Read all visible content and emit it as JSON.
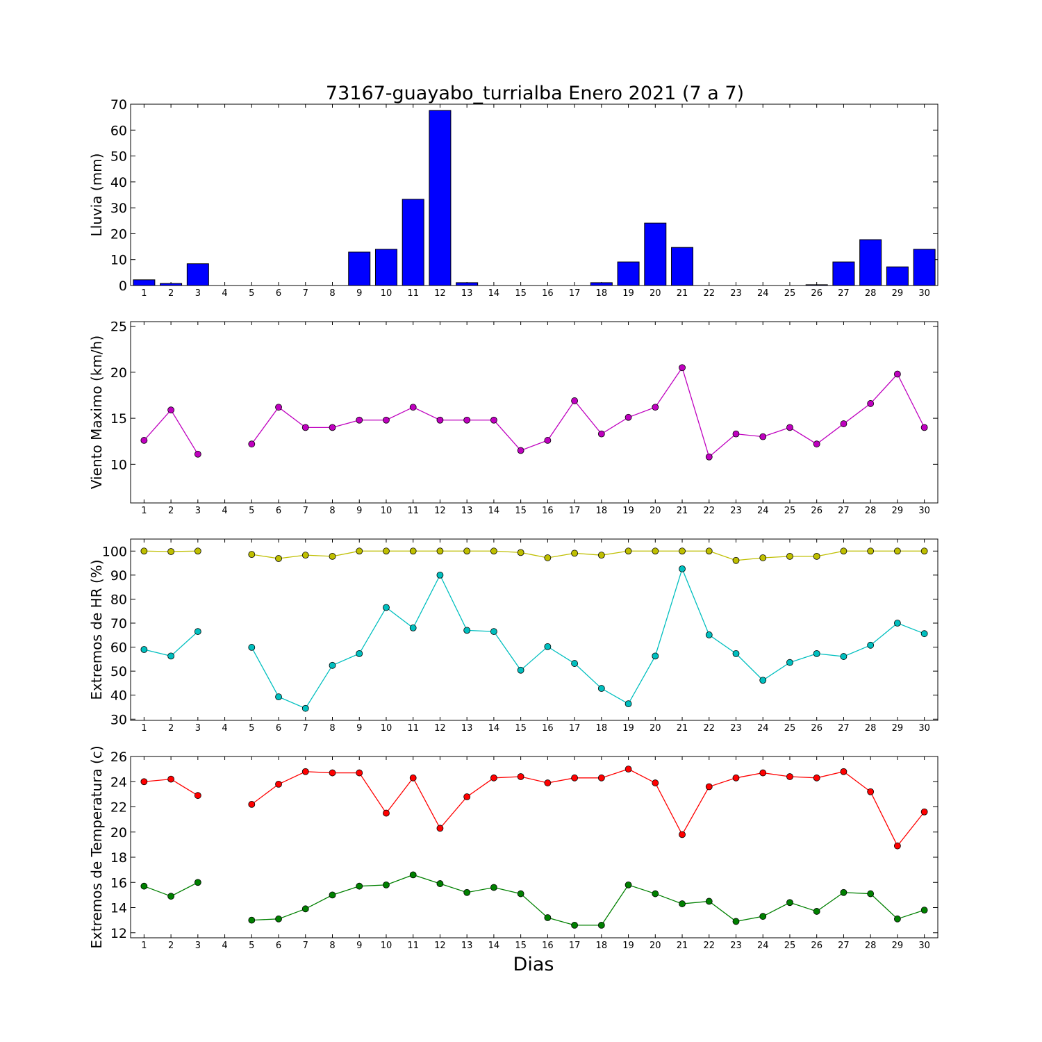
{
  "figure": {
    "title": "73167-guayabo_turrialba Enero 2021  (7 a 7)",
    "xlabel": "Dias"
  },
  "chart_data": [
    {
      "type": "bar",
      "ylabel": "Lluvia (mm)",
      "ylim": [
        0,
        70
      ],
      "yticks": [
        0,
        10,
        20,
        30,
        40,
        50,
        60,
        70
      ],
      "categories": [
        1,
        2,
        3,
        4,
        5,
        6,
        7,
        8,
        9,
        10,
        11,
        12,
        13,
        14,
        15,
        16,
        17,
        18,
        19,
        20,
        21,
        22,
        23,
        24,
        25,
        26,
        27,
        28,
        29,
        30
      ],
      "values": [
        2.2,
        0.8,
        8.4,
        0,
        0,
        0,
        0,
        0,
        12.9,
        14,
        33.3,
        67.6,
        1.1,
        0,
        0,
        0,
        0,
        1.1,
        9.1,
        24.1,
        14.7,
        0,
        0,
        0,
        0,
        0.3,
        9.1,
        17.7,
        7.2,
        14
      ],
      "color": "#0000ff"
    },
    {
      "type": "line",
      "ylabel": "Viento Maximo (km/h)",
      "ylim": [
        5.8,
        25.5
      ],
      "yticks": [
        10,
        15,
        20,
        25
      ],
      "x": [
        1,
        2,
        3,
        4,
        5,
        6,
        7,
        8,
        9,
        10,
        11,
        12,
        13,
        14,
        15,
        16,
        17,
        18,
        19,
        20,
        21,
        22,
        23,
        24,
        25,
        26,
        27,
        28,
        29,
        30
      ],
      "series": [
        {
          "values": [
            12.6,
            15.9,
            11.1,
            null,
            12.2,
            16.2,
            14,
            14,
            14.8,
            14.8,
            16.2,
            14.8,
            14.8,
            14.8,
            11.5,
            12.6,
            16.9,
            13.3,
            15.1,
            16.2,
            20.5,
            10.8,
            13.3,
            13,
            14,
            12.2,
            14.4,
            16.6,
            19.8,
            14
          ],
          "color": "#bf00bf"
        }
      ]
    },
    {
      "type": "line",
      "ylabel": "Extremos de HR (%)",
      "ylim": [
        29.5,
        105
      ],
      "yticks": [
        30,
        40,
        50,
        60,
        70,
        80,
        90,
        100
      ],
      "x": [
        1,
        2,
        3,
        4,
        5,
        6,
        7,
        8,
        9,
        10,
        11,
        12,
        13,
        14,
        15,
        16,
        17,
        18,
        19,
        20,
        21,
        22,
        23,
        24,
        25,
        26,
        27,
        28,
        29,
        30
      ],
      "series": [
        {
          "values": [
            100,
            99.8,
            100,
            null,
            98.6,
            96.9,
            98.3,
            97.8,
            100,
            100,
            100,
            100,
            100,
            100,
            99.4,
            97.2,
            99.1,
            98.3,
            100,
            100,
            100,
            100,
            96.1,
            97.2,
            97.8,
            97.8,
            100,
            100,
            100,
            100
          ],
          "color": "#bfbf00"
        },
        {
          "values": [
            59,
            56.3,
            66.5,
            null,
            59.9,
            39.3,
            34.5,
            52.4,
            57.3,
            76.5,
            68,
            90,
            67,
            66.5,
            50.4,
            60.2,
            53.2,
            42.8,
            36.4,
            56.3,
            92.6,
            65.1,
            57.3,
            46.2,
            53.6,
            57.3,
            56.1,
            60.8,
            70,
            65.6
          ],
          "color": "#00bfbf"
        }
      ]
    },
    {
      "type": "line",
      "ylabel": "Extremos de Temperatura (c)",
      "ylim": [
        11.6,
        26
      ],
      "yticks": [
        12,
        14,
        16,
        18,
        20,
        22,
        24,
        26
      ],
      "x": [
        1,
        2,
        3,
        4,
        5,
        6,
        7,
        8,
        9,
        10,
        11,
        12,
        13,
        14,
        15,
        16,
        17,
        18,
        19,
        20,
        21,
        22,
        23,
        24,
        25,
        26,
        27,
        28,
        29,
        30
      ],
      "series": [
        {
          "values": [
            24,
            24.2,
            22.9,
            null,
            22.2,
            23.8,
            24.8,
            24.7,
            24.7,
            21.5,
            24.3,
            20.3,
            22.8,
            24.3,
            24.4,
            23.9,
            24.3,
            24.3,
            25,
            23.9,
            19.8,
            23.6,
            24.3,
            24.7,
            24.4,
            24.3,
            24.8,
            23.2,
            18.9,
            21.6
          ],
          "color": "#ff0000"
        },
        {
          "values": [
            15.7,
            14.9,
            16,
            null,
            13,
            13.1,
            13.9,
            15,
            15.7,
            15.8,
            16.6,
            15.9,
            15.2,
            15.6,
            15.1,
            13.2,
            12.6,
            12.6,
            15.8,
            15.1,
            14.3,
            14.5,
            12.9,
            13.3,
            14.4,
            13.7,
            15.2,
            15.1,
            13.1,
            13.8
          ],
          "color": "#008000"
        }
      ]
    }
  ]
}
